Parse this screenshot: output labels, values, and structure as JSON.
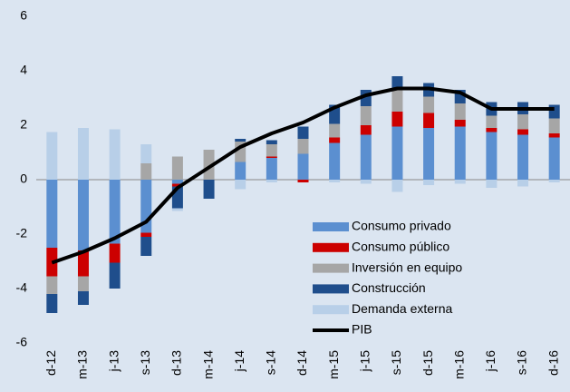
{
  "chart_data": {
    "type": "bar",
    "categories": [
      "d-12",
      "m-13",
      "j-13",
      "s-13",
      "d-13",
      "m-14",
      "j-14",
      "s-14",
      "d-14",
      "m-15",
      "j-15",
      "s-15",
      "d-15",
      "m-16",
      "j-16",
      "s-16",
      "d-16"
    ],
    "series": [
      {
        "name": "Consumo privado",
        "color": "#5b8fd0",
        "values": [
          -2.5,
          -2.6,
          -2.35,
          -1.95,
          -0.15,
          0,
          0.65,
          0.8,
          0.95,
          1.35,
          1.65,
          1.95,
          1.9,
          1.95,
          1.75,
          1.65,
          1.55
        ]
      },
      {
        "name": "Consumo público",
        "color": "#cc0000",
        "values": [
          -1.05,
          -0.95,
          -0.7,
          -0.15,
          -0.1,
          0,
          0,
          0.05,
          -0.1,
          0.2,
          0.35,
          0.55,
          0.55,
          0.25,
          0.15,
          0.2,
          0.15
        ]
      },
      {
        "name": "Inversión en equipo",
        "color": "#a6a6a6",
        "values": [
          -0.65,
          -0.55,
          0,
          0.6,
          0.85,
          1.1,
          0.75,
          0.45,
          0.55,
          0.5,
          0.7,
          0.85,
          0.6,
          0.6,
          0.45,
          0.55,
          0.55
        ]
      },
      {
        "name": "Construcción",
        "color": "#1f4e8c",
        "values": [
          -0.7,
          -0.5,
          -0.95,
          -0.7,
          -0.8,
          -0.7,
          0.1,
          0.15,
          0.45,
          0.7,
          0.6,
          0.45,
          0.5,
          0.5,
          0.5,
          0.45,
          0.5
        ]
      },
      {
        "name": "Demanda externa",
        "color": "#b8cfe8",
        "values": [
          1.75,
          1.9,
          1.85,
          0.7,
          -0.1,
          0,
          -0.35,
          -0.1,
          0,
          -0.1,
          -0.15,
          -0.45,
          -0.2,
          -0.15,
          -0.3,
          -0.25,
          -0.1
        ]
      },
      {
        "name": "PIB",
        "color": "#000000",
        "type": "line",
        "values": [
          -3.05,
          -2.65,
          -2.15,
          -1.55,
          -0.3,
          0.45,
          1.2,
          1.7,
          2.1,
          2.65,
          3.1,
          3.35,
          3.35,
          3.2,
          2.6,
          2.6,
          2.6
        ]
      }
    ],
    "ylim": [
      -6,
      6
    ],
    "yticks": [
      -6,
      -4,
      -2,
      0,
      2,
      4,
      6
    ],
    "grid": false,
    "legend": "lower right"
  }
}
